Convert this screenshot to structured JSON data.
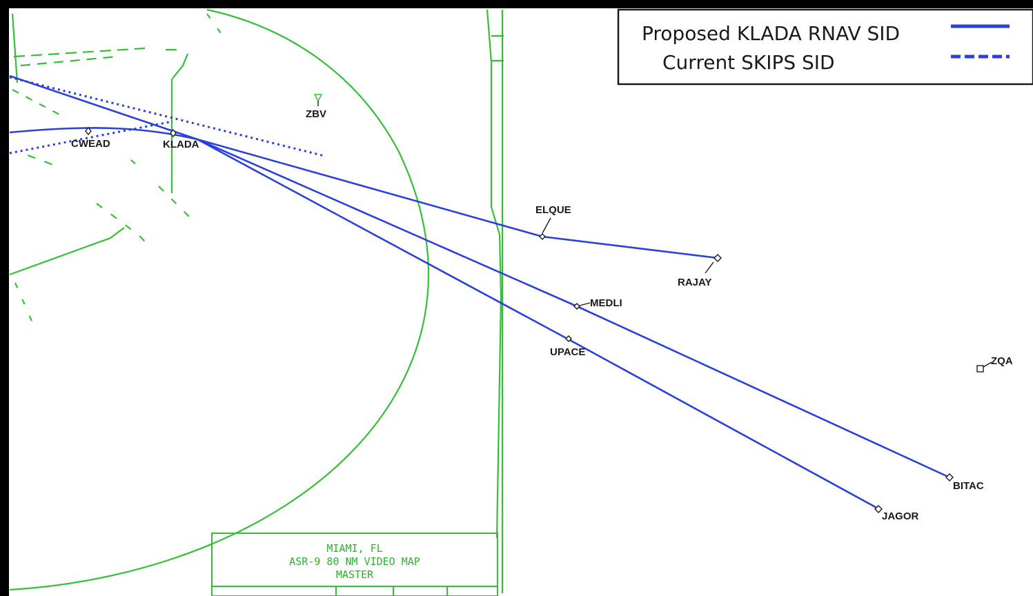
{
  "legend": {
    "proposed_label": "Proposed KLADA RNAV SID",
    "current_label": "Current  SKIPS SID",
    "route_color": "#2a3fe0"
  },
  "map_color": "#34c034",
  "waypoints": {
    "zbv": "ZBV",
    "cwead": "CWEAD",
    "klada": "KLADA",
    "elque": "ELQUE",
    "rajay": "RAJAY",
    "medli": "MEDLI",
    "upace": "UPACE",
    "zqa": "ZQA",
    "bitac": "BITAC",
    "jagor": "JAGOR"
  },
  "title_block": {
    "line1": "MIAMI, FL",
    "line2": "ASR-9 80 NM VIDEO MAP",
    "line3": "MASTER"
  }
}
